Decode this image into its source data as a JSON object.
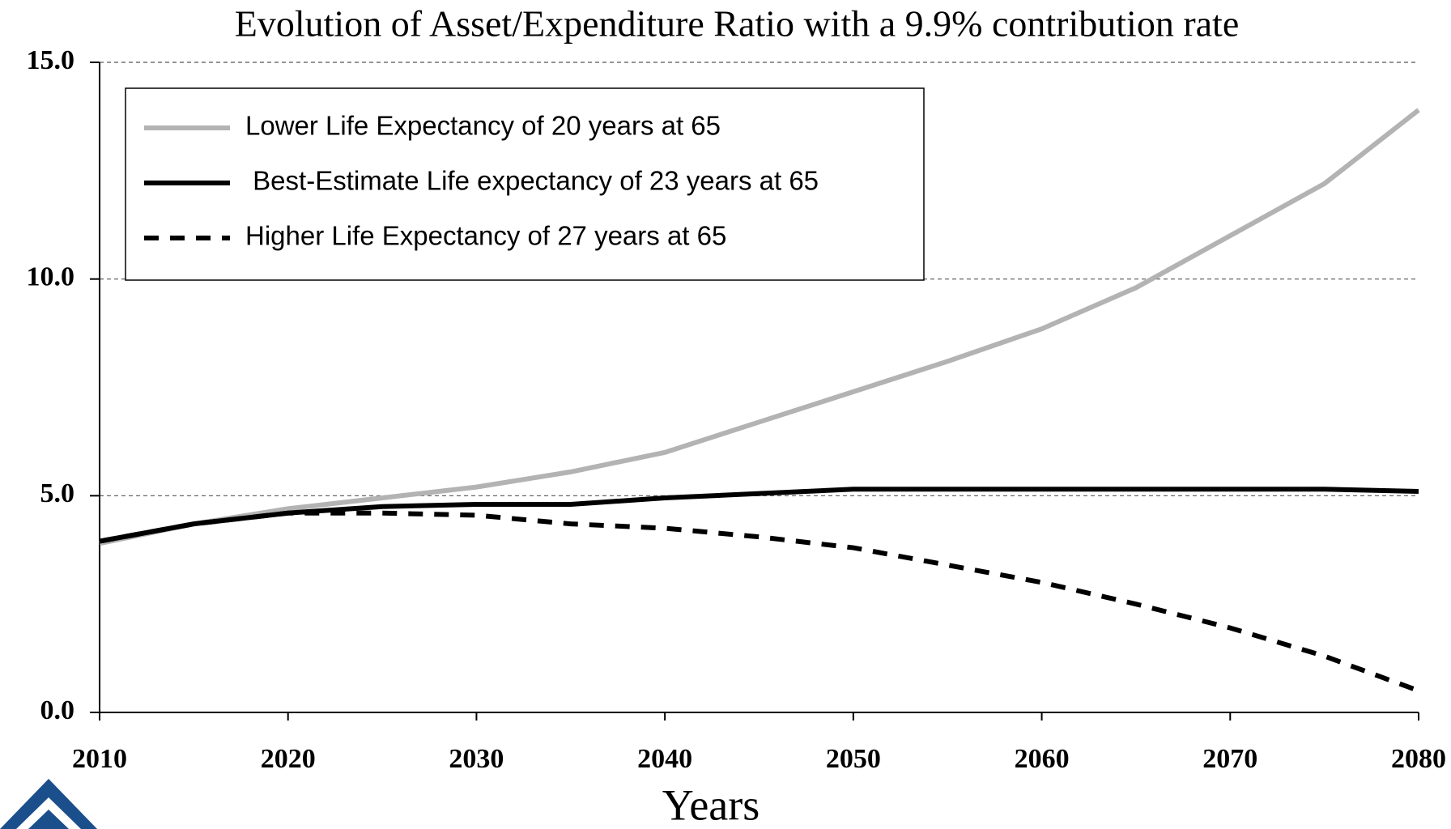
{
  "chart_data": {
    "type": "line",
    "title": "Evolution of Asset/Expenditure Ratio with a 9.9% contribution rate",
    "x_label": "Years",
    "x": [
      2010,
      2015,
      2020,
      2025,
      2030,
      2035,
      2040,
      2045,
      2050,
      2055,
      2060,
      2065,
      2070,
      2075,
      2080
    ],
    "series": [
      {
        "name": "Lower Life Expectancy of 20 years at 65",
        "color": "#b3b3b3",
        "dash": "solid",
        "values": [
          3.9,
          4.35,
          4.7,
          4.95,
          5.2,
          5.55,
          6.0,
          6.7,
          7.4,
          8.1,
          8.85,
          9.8,
          11.0,
          12.2,
          13.9
        ]
      },
      {
        "name": " Best-Estimate Life expectancy of 23 years at 65",
        "color": "#000000",
        "dash": "solid",
        "values": [
          3.95,
          4.35,
          4.6,
          4.75,
          4.8,
          4.8,
          4.95,
          5.05,
          5.15,
          5.15,
          5.15,
          5.15,
          5.15,
          5.15,
          5.1
        ]
      },
      {
        "name": "Higher Life Expectancy of 27 years at 65",
        "color": "#000000",
        "dash": "dashed",
        "values": [
          3.95,
          4.35,
          4.6,
          4.6,
          4.55,
          4.35,
          4.25,
          4.05,
          3.8,
          3.4,
          3.0,
          2.5,
          1.95,
          1.3,
          0.5
        ]
      }
    ],
    "xlim": [
      2010,
      2080
    ],
    "xticks": [
      2010,
      2020,
      2030,
      2040,
      2050,
      2060,
      2070,
      2080
    ],
    "ylim": [
      0,
      15
    ],
    "yticks": [
      {
        "value": 0,
        "label": "0.0"
      },
      {
        "value": 5,
        "label": "5.0"
      },
      {
        "value": 10,
        "label": "10.0"
      },
      {
        "value": 15,
        "label": "15.0"
      }
    ],
    "grid": true,
    "legend": "upper left"
  }
}
